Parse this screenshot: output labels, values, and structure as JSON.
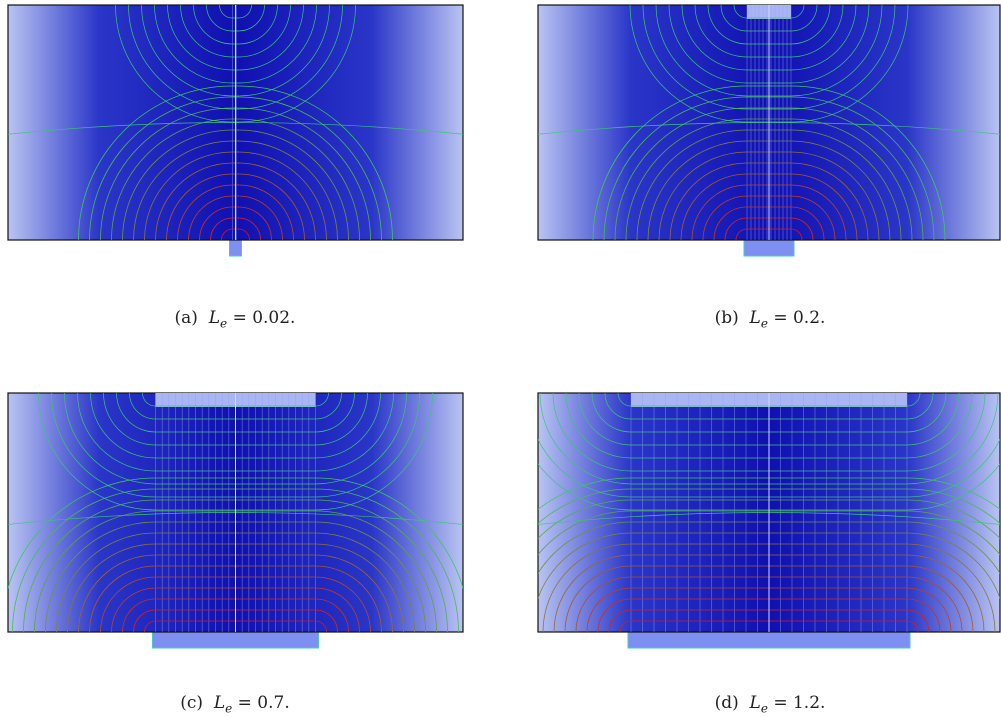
{
  "panels": [
    {
      "label": "(a)",
      "symbol": "L",
      "subscript": "e",
      "rest": "= 0.02."
    },
    {
      "label": "(b)",
      "symbol": "L",
      "subscript": "e",
      "rest": "= 0.2."
    },
    {
      "label": "(c)",
      "symbol": "L",
      "subscript": "e",
      "rest": "= 0.7."
    },
    {
      "label": "(d)",
      "symbol": "L",
      "subscript": "e",
      "rest": "= 1.2."
    }
  ]
}
